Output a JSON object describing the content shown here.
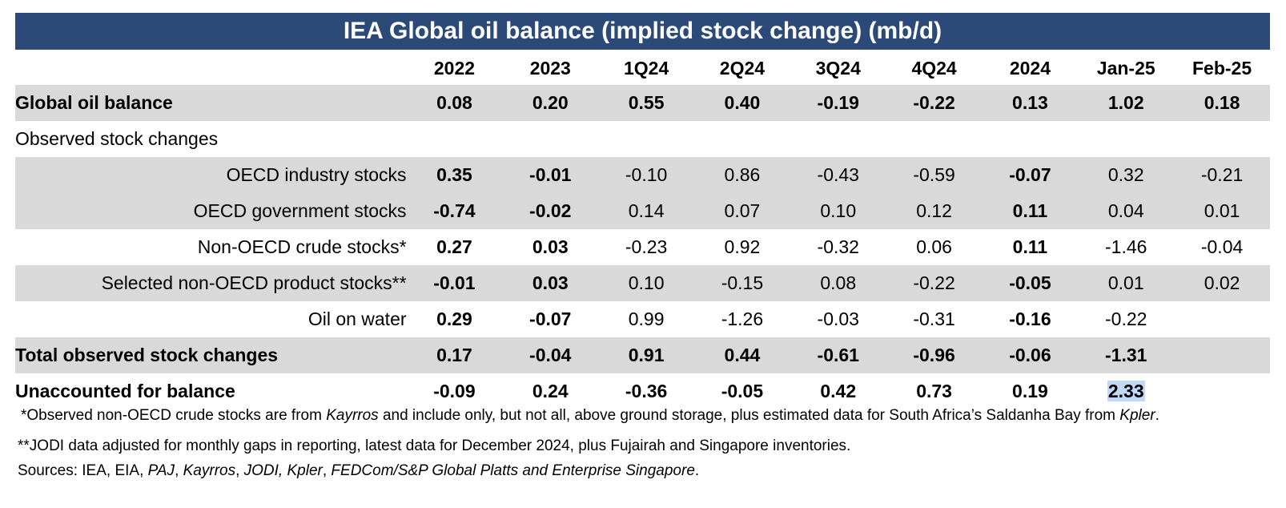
{
  "title": "IEA Global oil balance (implied stock change) (mb/d)",
  "columns": [
    "2022",
    "2023",
    "1Q24",
    "2Q24",
    "3Q24",
    "4Q24",
    "2024",
    "Jan-25",
    "Feb-25"
  ],
  "rows": {
    "global": {
      "label": "Global oil balance",
      "values": [
        "0.08",
        "0.20",
        "0.55",
        "0.40",
        "-0.19",
        "-0.22",
        "0.13",
        "1.02",
        "0.18"
      ]
    },
    "observed_header": {
      "label": "Observed stock changes"
    },
    "oecd_industry": {
      "label": "OECD industry stocks",
      "values": [
        "0.35",
        "-0.01",
        "-0.10",
        "0.86",
        "-0.43",
        "-0.59",
        "-0.07",
        "0.32",
        "-0.21"
      ]
    },
    "oecd_government": {
      "label": "OECD government stocks",
      "values": [
        "-0.74",
        "-0.02",
        "0.14",
        "0.07",
        "0.10",
        "0.12",
        "0.11",
        "0.04",
        "0.01"
      ]
    },
    "non_oecd_crude": {
      "label": "Non-OECD crude stocks*",
      "values": [
        "0.27",
        "0.03",
        "-0.23",
        "0.92",
        "-0.32",
        "0.06",
        "0.11",
        "-1.46",
        "-0.04"
      ]
    },
    "non_oecd_product": {
      "label": "Selected non-OECD product stocks**",
      "values": [
        "-0.01",
        "0.03",
        "0.10",
        "-0.15",
        "0.08",
        "-0.22",
        "-0.05",
        "0.01",
        "0.02"
      ]
    },
    "oil_on_water": {
      "label": "Oil on water",
      "values": [
        "0.29",
        "-0.07",
        "0.99",
        "-1.26",
        "-0.03",
        "-0.31",
        "-0.16",
        "-0.22",
        ""
      ]
    },
    "total_observed": {
      "label": "Total observed stock changes",
      "values": [
        "0.17",
        "-0.04",
        "0.91",
        "0.44",
        "-0.61",
        "-0.96",
        "-0.06",
        "-1.31",
        ""
      ]
    },
    "unaccounted": {
      "label": "Unaccounted for balance",
      "values": [
        "-0.09",
        "0.24",
        "-0.36",
        "-0.05",
        "0.42",
        "0.73",
        "0.19",
        "2.33",
        ""
      ]
    }
  },
  "highlight_color": "#bfd9f6",
  "header_color": "#2b4a78",
  "shade_color": "#d9d9d9",
  "footnotes": {
    "fn1": {
      "a": "*Observed non-OECD crude stocks are from ",
      "b": "Kayrros",
      "c": " and include only, but not all, above ground storage, plus estimated data for South Africa’s Saldanha Bay from ",
      "d": "Kpler",
      "e": "."
    },
    "fn2": "**JODI data adjusted for monthly gaps in reporting, latest data for December 2024, plus Fujairah and Singapore inventories.",
    "sources": {
      "prefix": "Sources: IEA, EIA, ",
      "paj": "PAJ",
      "sep1": ", ",
      "kayrros": "Kayrros",
      "sep2": ", ",
      "jodi": "JODI, ",
      "kpler": "Kpler",
      "sep3": ", ",
      "fedcom": "FEDCom/S&P Global Platts and ",
      "ent": "Enterprise Singapore",
      "end": "."
    }
  }
}
